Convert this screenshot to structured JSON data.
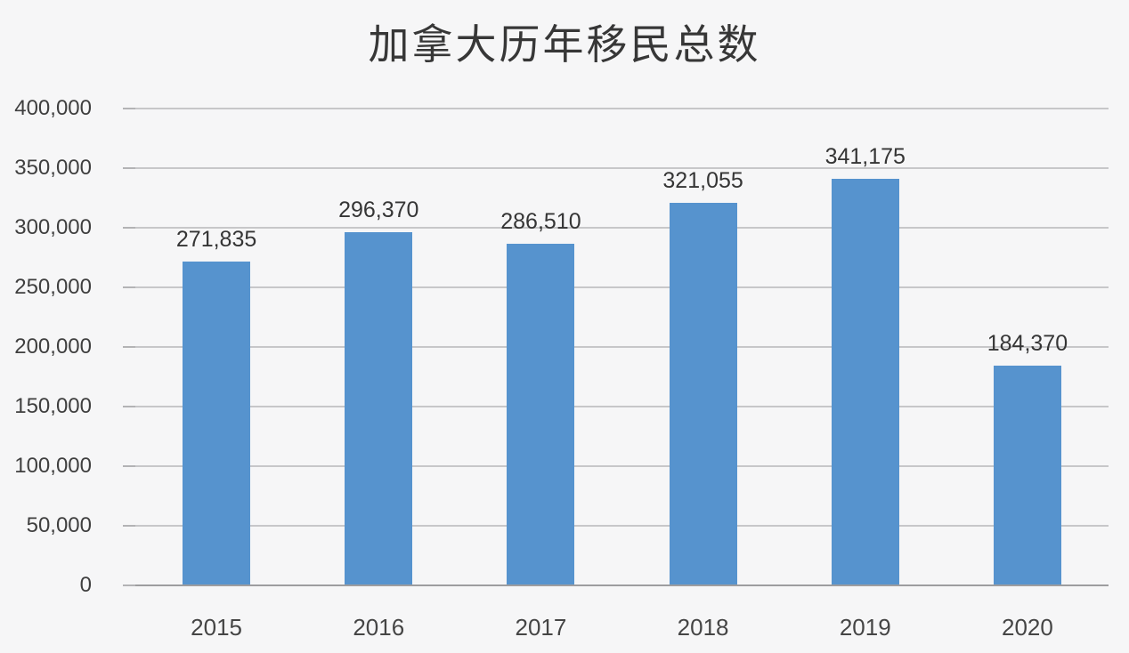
{
  "chart_data": {
    "type": "bar",
    "title": "加拿大历年移民总数",
    "categories": [
      "2015",
      "2016",
      "2017",
      "2018",
      "2019",
      "2020"
    ],
    "values": [
      271835,
      296370,
      286510,
      321055,
      341175,
      184370
    ],
    "value_labels": [
      "271,835",
      "296,370",
      "286,510",
      "321,055",
      "341,175",
      "184,370"
    ],
    "xlabel": "",
    "ylabel": "",
    "ylim": [
      0,
      400000
    ],
    "y_tick_values": [
      0,
      50000,
      100000,
      150000,
      200000,
      250000,
      300000,
      350000,
      400000
    ],
    "y_tick_labels": [
      "0",
      "50,000",
      "100,000",
      "150,000",
      "200,000",
      "250,000",
      "300,000",
      "350,000",
      "400,000"
    ],
    "grid": true,
    "legend": "none",
    "colors": {
      "bar": "#5693ce",
      "gridline": "#c7c7c9",
      "baseline": "#9d9d9f",
      "tick": "#b3b3b5",
      "text": "#3f3f3f",
      "background": "#f6f6f7"
    }
  }
}
